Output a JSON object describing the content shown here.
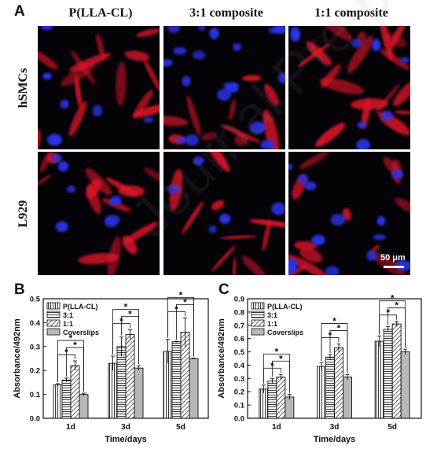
{
  "panel_a": {
    "letter": "A",
    "columns": [
      "P(LLA-CL)",
      "3:1 composite",
      "1:1 composite"
    ],
    "rows": [
      "hSMCs",
      "L929"
    ],
    "scale_bar": "50 μm",
    "colors": {
      "nucleus": "#2a35e8",
      "cytoskeleton": "#e0182c",
      "background": "#050208"
    }
  },
  "watermark": "Journal Pre-proof",
  "chart_data": [
    {
      "panel": "B",
      "type": "bar",
      "categories": [
        "1d",
        "3d",
        "5d"
      ],
      "series": [
        {
          "name": "P(LLA-CL)",
          "values": [
            0.14,
            0.23,
            0.28
          ],
          "errors": [
            0.005,
            0.03,
            0.05
          ]
        },
        {
          "name": "3:1",
          "values": [
            0.16,
            0.3,
            0.32
          ],
          "errors": [
            0.008,
            0.04,
            0.002
          ]
        },
        {
          "name": "1:1",
          "values": [
            0.22,
            0.35,
            0.36
          ],
          "errors": [
            0.02,
            0.02,
            0.06
          ]
        },
        {
          "name": "Coverslips",
          "values": [
            0.1,
            0.21,
            0.25
          ],
          "errors": [
            0.005,
            0.01,
            0.002
          ]
        }
      ],
      "xlabel": "Time/days",
      "ylabel": "Absorbance/492nm",
      "ylim": [
        0.0,
        0.5
      ],
      "yticks": [
        "0.0",
        "0.1",
        "0.2",
        "0.3",
        "0.4",
        "0.5"
      ],
      "significance": "*",
      "legend": "top-left",
      "colors": [
        "#ffffff",
        "#ffffff",
        "#ffffff",
        "#b8b8b8"
      ],
      "patterns": [
        "vertical",
        "horizontal",
        "diagonal",
        "solid"
      ]
    },
    {
      "panel": "C",
      "type": "bar",
      "categories": [
        "1d",
        "3d",
        "5d"
      ],
      "series": [
        {
          "name": "P(LLA-CL)",
          "values": [
            0.22,
            0.39,
            0.58
          ],
          "errors": [
            0.03,
            0.03,
            0.04
          ]
        },
        {
          "name": "3:1",
          "values": [
            0.28,
            0.46,
            0.67
          ],
          "errors": [
            0.02,
            0.02,
            0.02
          ]
        },
        {
          "name": "1:1",
          "values": [
            0.31,
            0.53,
            0.71
          ],
          "errors": [
            0.02,
            0.03,
            0.02
          ]
        },
        {
          "name": "Coverslips",
          "values": [
            0.16,
            0.31,
            0.5
          ],
          "errors": [
            0.02,
            0.02,
            0.02
          ]
        }
      ],
      "xlabel": "Time/days",
      "ylabel": "Absorbance/492nm",
      "ylim": [
        0.0,
        0.9
      ],
      "yticks": [
        "0.0",
        "0.1",
        "0.2",
        "0.3",
        "0.4",
        "0.5",
        "0.6",
        "0.7",
        "0.8",
        "0.9"
      ],
      "significance": "*",
      "legend": "top-left",
      "colors": [
        "#ffffff",
        "#ffffff",
        "#ffffff",
        "#b8b8b8"
      ],
      "patterns": [
        "vertical",
        "horizontal",
        "diagonal",
        "solid"
      ]
    }
  ]
}
